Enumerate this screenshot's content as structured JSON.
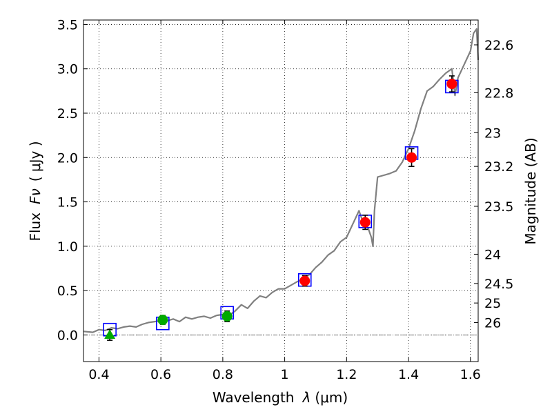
{
  "chart_data": {
    "type": "scatter",
    "title": "",
    "xlabel_text": "Wavelength",
    "xlabel_symbol": "λ",
    "xlabel_unit": "(μm)",
    "ylabel_text": "Flux",
    "ylabel_symbol": "Fν",
    "ylabel_unit": "( μJy )",
    "y2label": "Magnitude (AB)",
    "xlim": [
      0.35,
      1.625
    ],
    "ylim": [
      -0.3,
      3.55
    ],
    "grid": true,
    "x_ticks": [
      {
        "value": 0.4,
        "label": "0.4"
      },
      {
        "value": 0.6,
        "label": "0.6"
      },
      {
        "value": 0.8,
        "label": "0.8"
      },
      {
        "value": 1.0,
        "label": "1"
      },
      {
        "value": 1.2,
        "label": "1.2"
      },
      {
        "value": 1.4,
        "label": "1.4"
      },
      {
        "value": 1.6,
        "label": "1.6"
      }
    ],
    "y_ticks": [
      {
        "value": 0.0,
        "label": "0.0"
      },
      {
        "value": 0.5,
        "label": "0.5"
      },
      {
        "value": 1.0,
        "label": "1.0"
      },
      {
        "value": 1.5,
        "label": "1.5"
      },
      {
        "value": 2.0,
        "label": "2.0"
      },
      {
        "value": 2.5,
        "label": "2.5"
      },
      {
        "value": 3.0,
        "label": "3.0"
      },
      {
        "value": 3.5,
        "label": "3.5"
      }
    ],
    "y2_ticks": [
      {
        "flux": 3.27,
        "label": "22.6"
      },
      {
        "flux": 2.73,
        "label": "22.8"
      },
      {
        "flux": 2.28,
        "label": "23"
      },
      {
        "flux": 1.9,
        "label": "23.2"
      },
      {
        "flux": 1.45,
        "label": "23.5"
      },
      {
        "flux": 0.91,
        "label": "24"
      },
      {
        "flux": 0.58,
        "label": "24.5"
      },
      {
        "flux": 0.36,
        "label": "25"
      },
      {
        "flux": 0.14,
        "label": "26"
      }
    ],
    "series": [
      {
        "kind": "model-spectrum",
        "color": "#808080",
        "x": [
          0.35,
          0.38,
          0.4,
          0.42,
          0.44,
          0.46,
          0.48,
          0.5,
          0.52,
          0.54,
          0.56,
          0.58,
          0.6,
          0.62,
          0.64,
          0.66,
          0.68,
          0.7,
          0.72,
          0.74,
          0.76,
          0.78,
          0.8,
          0.82,
          0.84,
          0.86,
          0.88,
          0.9,
          0.92,
          0.94,
          0.96,
          0.98,
          1.0,
          1.02,
          1.04,
          1.06,
          1.08,
          1.1,
          1.12,
          1.14,
          1.16,
          1.18,
          1.2,
          1.22,
          1.24,
          1.25,
          1.26,
          1.27,
          1.28,
          1.285,
          1.29,
          1.3,
          1.32,
          1.34,
          1.36,
          1.38,
          1.4,
          1.42,
          1.44,
          1.46,
          1.48,
          1.5,
          1.52,
          1.54,
          1.55,
          1.56,
          1.58,
          1.6,
          1.61,
          1.62,
          1.625
        ],
        "y": [
          0.04,
          0.03,
          0.06,
          0.05,
          0.08,
          0.07,
          0.09,
          0.1,
          0.09,
          0.12,
          0.14,
          0.15,
          0.16,
          0.16,
          0.18,
          0.15,
          0.2,
          0.18,
          0.2,
          0.21,
          0.19,
          0.22,
          0.23,
          0.22,
          0.27,
          0.34,
          0.3,
          0.38,
          0.44,
          0.42,
          0.48,
          0.52,
          0.52,
          0.56,
          0.6,
          0.63,
          0.68,
          0.76,
          0.82,
          0.9,
          0.95,
          1.05,
          1.1,
          1.25,
          1.4,
          1.3,
          1.28,
          1.2,
          1.1,
          1.0,
          1.4,
          1.78,
          1.8,
          1.82,
          1.85,
          1.95,
          2.1,
          2.3,
          2.55,
          2.75,
          2.8,
          2.88,
          2.95,
          3.0,
          2.7,
          2.9,
          3.05,
          3.2,
          3.4,
          3.45,
          3.1
        ]
      },
      {
        "kind": "model-photometry",
        "marker": "open-square",
        "color": "#0000ff",
        "x": [
          0.435,
          0.606,
          0.814,
          1.065,
          1.26,
          1.41,
          1.54
        ],
        "y": [
          0.06,
          0.13,
          0.25,
          0.62,
          1.28,
          2.05,
          2.8
        ]
      },
      {
        "kind": "observed-optical",
        "marker": "filled-circle",
        "color": "#00aa00",
        "x": [
          0.606,
          0.814
        ],
        "y": [
          0.17,
          0.21
        ],
        "err": [
          0.05,
          0.06
        ]
      },
      {
        "kind": "observed-optical-upper-limit",
        "marker": "filled-triangle",
        "color": "#00aa00",
        "x": [
          0.435
        ],
        "y": [
          0.0
        ],
        "err": [
          0.06
        ]
      },
      {
        "kind": "observed-ir",
        "marker": "filled-circle",
        "color": "#ff0000",
        "x": [
          1.065,
          1.26,
          1.41,
          1.54
        ],
        "y": [
          0.61,
          1.27,
          2.0,
          2.83
        ],
        "err": [
          0.06,
          0.08,
          0.1,
          0.09
        ]
      }
    ]
  }
}
